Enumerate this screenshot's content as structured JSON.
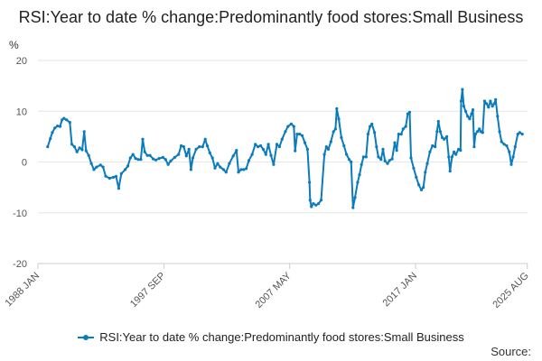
{
  "chart_data": {
    "type": "line",
    "title": "RSI:Year to date % change:Predominantly food stores:Small Business",
    "xlabel": "",
    "ylabel": "%",
    "ylim": [
      -20,
      20
    ],
    "y_ticks": [
      20,
      10,
      0,
      -10,
      -20
    ],
    "x_range": [
      1988.0,
      2025.6
    ],
    "x_ticks": [
      {
        "label": "1988 JAN",
        "x": 1988.0
      },
      {
        "label": "1997 SEP",
        "x": 1997.67
      },
      {
        "label": "2007 MAY",
        "x": 2007.33
      },
      {
        "label": "2017 JAN",
        "x": 2017.0
      },
      {
        "label": "2025 AUG",
        "x": 2025.58
      }
    ],
    "grid": true,
    "legend": "bottom",
    "series": [
      {
        "name": "RSI:Year to date % change:Predominantly food stores:Small Business",
        "color": "#0b7bbd",
        "points": [
          [
            1988.75,
            3.0
          ],
          [
            1988.95,
            4.6
          ],
          [
            1989.1,
            5.8
          ],
          [
            1989.3,
            6.7
          ],
          [
            1989.5,
            7.1
          ],
          [
            1989.7,
            7.0
          ],
          [
            1989.85,
            8.3
          ],
          [
            1990.0,
            8.6
          ],
          [
            1990.2,
            8.3
          ],
          [
            1990.45,
            7.8
          ],
          [
            1990.6,
            3.5
          ],
          [
            1990.8,
            3.0
          ],
          [
            1991.0,
            2.0
          ],
          [
            1991.2,
            2.8
          ],
          [
            1991.4,
            2.4
          ],
          [
            1991.55,
            6.0
          ],
          [
            1991.7,
            2.2
          ],
          [
            1991.9,
            1.3
          ],
          [
            1992.1,
            -0.3
          ],
          [
            1992.3,
            -1.5
          ],
          [
            1992.5,
            -1.0
          ],
          [
            1992.8,
            -0.6
          ],
          [
            1993.0,
            -1.0
          ],
          [
            1993.2,
            -2.8
          ],
          [
            1993.5,
            -3.2
          ],
          [
            1993.8,
            -3.0
          ],
          [
            1994.0,
            -2.8
          ],
          [
            1994.2,
            -5.2
          ],
          [
            1994.4,
            -2.3
          ],
          [
            1994.7,
            -1.5
          ],
          [
            1994.9,
            -0.8
          ],
          [
            1995.1,
            0.8
          ],
          [
            1995.3,
            1.5
          ],
          [
            1995.5,
            0.7
          ],
          [
            1995.7,
            0.5
          ],
          [
            1995.9,
            0.5
          ],
          [
            1996.05,
            4.5
          ],
          [
            1996.2,
            2.0
          ],
          [
            1996.4,
            1.3
          ],
          [
            1996.6,
            1.3
          ],
          [
            1996.85,
            0.6
          ],
          [
            1997.05,
            0.4
          ],
          [
            1997.3,
            0.7
          ],
          [
            1997.6,
            0.9
          ],
          [
            1997.8,
            0.5
          ],
          [
            1998.0,
            -0.5
          ],
          [
            1998.2,
            0.2
          ],
          [
            1998.5,
            0.9
          ],
          [
            1998.8,
            1.5
          ],
          [
            1999.0,
            3.2
          ],
          [
            1999.2,
            3.0
          ],
          [
            1999.4,
            1.2
          ],
          [
            1999.6,
            2.5
          ],
          [
            1999.75,
            -1.5
          ],
          [
            1999.9,
            0.8
          ],
          [
            2000.15,
            2.5
          ],
          [
            2000.4,
            3.0
          ],
          [
            2000.65,
            3.0
          ],
          [
            2000.85,
            4.5
          ],
          [
            2001.0,
            3.2
          ],
          [
            2001.2,
            1.8
          ],
          [
            2001.4,
            0.8
          ],
          [
            2001.6,
            -1.2
          ],
          [
            2001.8,
            -0.3
          ],
          [
            2002.0,
            -1.0
          ],
          [
            2002.25,
            -1.5
          ],
          [
            2002.45,
            -2.0
          ],
          [
            2002.7,
            -0.3
          ],
          [
            2003.0,
            1.2
          ],
          [
            2003.25,
            2.3
          ],
          [
            2003.4,
            -2.0
          ],
          [
            2003.6,
            -1.5
          ],
          [
            2003.8,
            -1.5
          ],
          [
            2004.0,
            -1.3
          ],
          [
            2004.2,
            0.3
          ],
          [
            2004.45,
            1.5
          ],
          [
            2004.7,
            3.5
          ],
          [
            2004.9,
            3.0
          ],
          [
            2005.1,
            3.2
          ],
          [
            2005.3,
            2.5
          ],
          [
            2005.5,
            1.5
          ],
          [
            2005.7,
            3.5
          ],
          [
            2005.9,
            1.3
          ],
          [
            2006.1,
            -0.5
          ],
          [
            2006.35,
            3.5
          ],
          [
            2006.55,
            3.0
          ],
          [
            2006.75,
            4.5
          ],
          [
            2007.0,
            6.0
          ],
          [
            2007.2,
            7.0
          ],
          [
            2007.45,
            7.5
          ],
          [
            2007.65,
            7.0
          ],
          [
            2007.75,
            2.2
          ],
          [
            2007.9,
            5.5
          ],
          [
            2008.1,
            5.5
          ],
          [
            2008.3,
            5.2
          ],
          [
            2008.5,
            3.8
          ],
          [
            2008.7,
            2.5
          ],
          [
            2008.85,
            -4.0
          ],
          [
            2008.9,
            -7.5
          ],
          [
            2009.0,
            -8.8
          ],
          [
            2009.15,
            -8.2
          ],
          [
            2009.35,
            -8.5
          ],
          [
            2009.55,
            -8.2
          ],
          [
            2009.75,
            -7.5
          ],
          [
            2010.0,
            1.5
          ],
          [
            2010.15,
            3.0
          ],
          [
            2010.3,
            2.5
          ],
          [
            2010.5,
            4.0
          ],
          [
            2010.7,
            6.0
          ],
          [
            2010.85,
            6.5
          ],
          [
            2010.95,
            10.5
          ],
          [
            2011.1,
            8.5
          ],
          [
            2011.3,
            4.8
          ],
          [
            2011.5,
            3.2
          ],
          [
            2011.7,
            1.5
          ],
          [
            2011.9,
            0.5
          ],
          [
            2012.05,
            0.0
          ],
          [
            2012.2,
            -9.0
          ],
          [
            2012.35,
            -7.0
          ],
          [
            2012.55,
            -4.0
          ],
          [
            2012.7,
            -2.5
          ],
          [
            2012.85,
            -0.5
          ],
          [
            2013.0,
            1.0
          ],
          [
            2013.2,
            1.0
          ],
          [
            2013.35,
            5.5
          ],
          [
            2013.5,
            7.0
          ],
          [
            2013.65,
            7.5
          ],
          [
            2013.85,
            5.8
          ],
          [
            2014.0,
            3.0
          ],
          [
            2014.15,
            1.0
          ],
          [
            2014.35,
            0.5
          ],
          [
            2014.5,
            2.5
          ],
          [
            2014.65,
            0.2
          ],
          [
            2014.85,
            -0.3
          ],
          [
            2015.0,
            0.3
          ],
          [
            2015.2,
            0.6
          ],
          [
            2015.4,
            3.8
          ],
          [
            2015.55,
            2.3
          ],
          [
            2015.7,
            5.5
          ],
          [
            2015.9,
            5.5
          ],
          [
            2016.05,
            6.5
          ],
          [
            2016.25,
            7.0
          ],
          [
            2016.4,
            9.5
          ],
          [
            2016.55,
            9.8
          ],
          [
            2016.65,
            0.8
          ],
          [
            2016.85,
            -1.2
          ],
          [
            2017.05,
            -3.0
          ],
          [
            2017.25,
            -4.5
          ],
          [
            2017.45,
            -5.5
          ],
          [
            2017.6,
            -5.0
          ],
          [
            2017.75,
            -2.0
          ],
          [
            2017.9,
            -0.3
          ],
          [
            2018.1,
            2.0
          ],
          [
            2018.3,
            3.2
          ],
          [
            2018.5,
            3.0
          ],
          [
            2018.65,
            6.0
          ],
          [
            2018.75,
            8.0
          ],
          [
            2018.9,
            6.0
          ],
          [
            2019.05,
            4.8
          ],
          [
            2019.2,
            4.5
          ],
          [
            2019.4,
            5.0
          ],
          [
            2019.55,
            1.0
          ],
          [
            2019.65,
            -1.8
          ],
          [
            2019.8,
            1.0
          ],
          [
            2019.95,
            2.0
          ],
          [
            2020.1,
            1.5
          ],
          [
            2020.3,
            2.5
          ],
          [
            2020.45,
            2.3
          ],
          [
            2020.5,
            12.0
          ],
          [
            2020.6,
            14.3
          ],
          [
            2020.7,
            11.0
          ],
          [
            2020.85,
            10.0
          ],
          [
            2021.0,
            9.0
          ],
          [
            2021.15,
            8.5
          ],
          [
            2021.3,
            9.5
          ],
          [
            2021.4,
            10.3
          ],
          [
            2021.5,
            3.0
          ],
          [
            2021.6,
            5.5
          ],
          [
            2021.75,
            6.0
          ],
          [
            2021.9,
            6.5
          ],
          [
            2022.0,
            6.0
          ],
          [
            2022.15,
            5.8
          ],
          [
            2022.3,
            12.0
          ],
          [
            2022.45,
            11.5
          ],
          [
            2022.6,
            10.8
          ],
          [
            2022.75,
            12.0
          ],
          [
            2022.9,
            11.0
          ],
          [
            2023.05,
            11.5
          ],
          [
            2023.15,
            12.3
          ],
          [
            2023.3,
            9.0
          ],
          [
            2023.45,
            6.0
          ],
          [
            2023.6,
            4.0
          ],
          [
            2023.8,
            3.5
          ],
          [
            2024.0,
            3.2
          ],
          [
            2024.2,
            2.0
          ],
          [
            2024.35,
            -0.5
          ],
          [
            2024.5,
            1.0
          ],
          [
            2024.65,
            3.0
          ],
          [
            2024.85,
            5.5
          ],
          [
            2025.0,
            5.8
          ],
          [
            2025.2,
            5.5
          ]
        ]
      }
    ]
  },
  "legend": {
    "label": "RSI:Year to date % change:Predominantly food stores:Small Business"
  },
  "footer": {
    "source_label": "Source:"
  }
}
